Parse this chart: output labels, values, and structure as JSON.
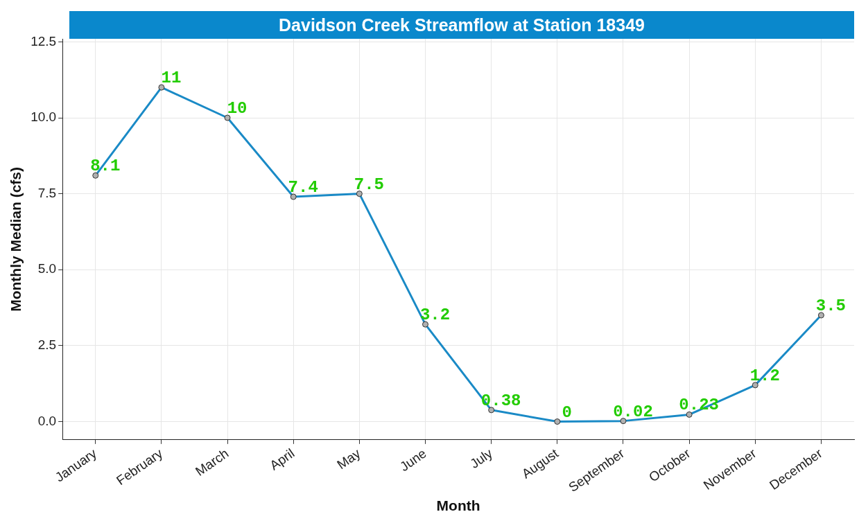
{
  "chart_data": {
    "type": "line",
    "title": "Davidson Creek Streamflow at Station 18349",
    "xlabel": "Month",
    "ylabel": "Monthly Median (cfs)",
    "categories": [
      "January",
      "February",
      "March",
      "April",
      "May",
      "June",
      "July",
      "August",
      "September",
      "October",
      "November",
      "December"
    ],
    "series": [
      {
        "color": "#1a8ac6",
        "values": [
          8.1,
          11,
          10,
          7.4,
          7.5,
          3.2,
          0.38,
          0,
          0.02,
          0.23,
          1.2,
          3.5
        ]
      }
    ],
    "ylim": [
      -0.6,
      12.6
    ],
    "yticks": [
      {
        "value": 0,
        "label": "0.0"
      },
      {
        "value": 2.5,
        "label": "2.5"
      },
      {
        "value": 5,
        "label": "5.0"
      },
      {
        "value": 7.5,
        "label": "7.5"
      },
      {
        "value": 10,
        "label": "10.0"
      },
      {
        "value": 12.5,
        "label": "12.5"
      }
    ],
    "grid": true,
    "marker": "circle",
    "line_style": "solid",
    "data_labels": true,
    "legend": false
  }
}
